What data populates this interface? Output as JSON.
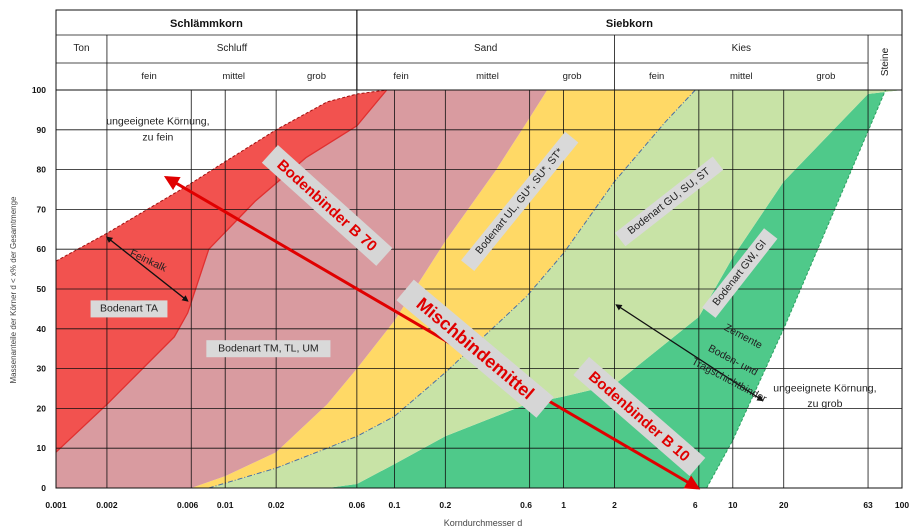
{
  "chart_data": {
    "type": "area",
    "header": {
      "groups": [
        {
          "label": "Schlämmkorn",
          "x0": 0.001,
          "x1": 0.06
        },
        {
          "label": "Siebkorn",
          "x0": 0.06,
          "x1": 100
        }
      ],
      "subgroups": [
        {
          "label": "Ton",
          "x0": 0.001,
          "x1": 0.002
        },
        {
          "label": "Schluff",
          "x0": 0.002,
          "x1": 0.06
        },
        {
          "label": "Sand",
          "x0": 0.06,
          "x1": 2
        },
        {
          "label": "Kies",
          "x0": 2,
          "x1": 63
        },
        {
          "label": "Steine",
          "x0": 63,
          "x1": 100
        }
      ],
      "fractions": [
        {
          "label": "fein",
          "x0": 0.002,
          "x1": 0.0063
        },
        {
          "label": "mittel",
          "x0": 0.0063,
          "x1": 0.02
        },
        {
          "label": "grob",
          "x0": 0.02,
          "x1": 0.06
        },
        {
          "label": "fein",
          "x0": 0.06,
          "x1": 0.2
        },
        {
          "label": "mittel",
          "x0": 0.2,
          "x1": 0.63
        },
        {
          "label": "grob",
          "x0": 0.63,
          "x1": 2
        },
        {
          "label": "fein",
          "x0": 2,
          "x1": 6.3
        },
        {
          "label": "mittel",
          "x0": 6.3,
          "x1": 20
        },
        {
          "label": "grob",
          "x0": 20,
          "x1": 63
        }
      ]
    },
    "x_scale": "log",
    "xlim": [
      0.001,
      100
    ],
    "ylim": [
      0,
      100
    ],
    "x_ticks": [
      {
        "value": 0.001,
        "label": "0.001"
      },
      {
        "value": 0.002,
        "label": "0.002"
      },
      {
        "value": 0.006,
        "label": "0.006"
      },
      {
        "value": 0.01,
        "label": "0.01"
      },
      {
        "value": 0.02,
        "label": "0.02"
      },
      {
        "value": 0.06,
        "label": "0.06"
      },
      {
        "value": 0.1,
        "label": "0.1"
      },
      {
        "value": 0.2,
        "label": "0.2"
      },
      {
        "value": 0.6,
        "label": "0.6"
      },
      {
        "value": 1,
        "label": "1"
      },
      {
        "value": 2,
        "label": "2"
      },
      {
        "value": 6,
        "label": "6"
      },
      {
        "value": 10,
        "label": "10"
      },
      {
        "value": 20,
        "label": "20"
      },
      {
        "value": 63,
        "label": "63"
      },
      {
        "value": 100,
        "label": "100"
      }
    ],
    "y_ticks": [
      0,
      10,
      20,
      30,
      40,
      50,
      60,
      70,
      80,
      90,
      100
    ],
    "xlabel": "Korndurchmesser d",
    "ylabel": "Massenanteile der Körner d < x% der Gesamtmenge",
    "vertical_lines": [
      0.002,
      0.0063,
      0.01,
      0.02,
      0.06,
      0.1,
      0.2,
      0.63,
      1,
      2,
      6.3,
      10,
      20,
      63,
      100
    ],
    "horizontal_lines": [
      10,
      20,
      30,
      40,
      50,
      60,
      70,
      80,
      90,
      100
    ],
    "colors": {
      "red": "#f2524f",
      "rose": "#d99ba0",
      "yellow": "#ffd966",
      "lightgreen": "#c8e3a6",
      "green": "#4fc98a",
      "binder": "#e00000"
    },
    "curves": {
      "c1": [
        [
          0.001,
          9
        ],
        [
          0.002,
          21
        ],
        [
          0.005,
          38
        ],
        [
          0.006,
          44
        ],
        [
          0.008,
          60
        ],
        [
          0.015,
          72
        ],
        [
          0.03,
          83
        ],
        [
          0.06,
          91
        ],
        [
          0.09,
          100
        ]
      ],
      "c2": [
        [
          0.001,
          57
        ],
        [
          0.002,
          64
        ],
        [
          0.006,
          76
        ],
        [
          0.01,
          82
        ],
        [
          0.02,
          90
        ],
        [
          0.04,
          97
        ],
        [
          0.06,
          99
        ],
        [
          0.09,
          100
        ]
      ],
      "c3": [
        [
          0.0063,
          0
        ],
        [
          0.01,
          3
        ],
        [
          0.02,
          9
        ],
        [
          0.04,
          21
        ],
        [
          0.06,
          30
        ],
        [
          0.1,
          42
        ],
        [
          0.2,
          62
        ],
        [
          0.4,
          80
        ],
        [
          0.63,
          93
        ],
        [
          0.8,
          100
        ]
      ],
      "c4": [
        [
          0.008,
          0
        ],
        [
          0.02,
          5
        ],
        [
          0.04,
          10
        ],
        [
          0.06,
          13
        ],
        [
          0.1,
          18
        ],
        [
          0.2,
          29
        ],
        [
          0.6,
          48
        ],
        [
          1,
          59
        ],
        [
          2,
          77
        ],
        [
          4,
          92
        ],
        [
          6,
          100
        ]
      ],
      "c5": [
        [
          0.02,
          0
        ],
        [
          0.04,
          4
        ],
        [
          0.06,
          7
        ],
        [
          0.2,
          18
        ],
        [
          0.6,
          28
        ],
        [
          1,
          37
        ],
        [
          2,
          50
        ],
        [
          6.3,
          62
        ],
        [
          10,
          70
        ],
        [
          20,
          82
        ],
        [
          45,
          100
        ]
      ],
      "c6": [
        [
          0.04,
          0
        ],
        [
          0.06,
          1
        ],
        [
          0.1,
          6
        ],
        [
          0.2,
          13
        ],
        [
          0.6,
          21
        ],
        [
          1,
          23
        ],
        [
          2,
          26
        ],
        [
          6.3,
          43
        ],
        [
          10,
          58
        ],
        [
          20,
          77
        ],
        [
          63,
          99
        ],
        [
          100,
          100
        ]
      ],
      "c7": [
        [
          7,
          0
        ],
        [
          10,
          12
        ],
        [
          20,
          40
        ],
        [
          40,
          70
        ],
        [
          80,
          100
        ]
      ]
    },
    "annotations": [
      {
        "text": "ungeeignete Körnung,",
        "x": 0.004,
        "y": 92
      },
      {
        "text": "zu fein",
        "x": 0.004,
        "y": 88
      },
      {
        "text": "Feinkalk",
        "x": 0.0035,
        "y": 57,
        "rotate": 25
      },
      {
        "text": "Bodenart TA",
        "x": 0.0027,
        "y": 45,
        "box": true
      },
      {
        "text": "Bodenart TM, TL, UM",
        "x": 0.018,
        "y": 35,
        "box": true
      },
      {
        "text": "Bodenart UL, GU*, SU*, ST*",
        "x": 0.55,
        "y": 72,
        "rotate": -51,
        "box": true
      },
      {
        "text": "Bodenart GU, SU, ST",
        "x": 4.2,
        "y": 72,
        "rotate": -38,
        "box": true
      },
      {
        "text": "Bodenart GW, GI",
        "x": 11,
        "y": 54,
        "rotate": -52,
        "box": true
      },
      {
        "text": "Zemente",
        "x": 11.5,
        "y": 38,
        "rotate": 28
      },
      {
        "text": "Boden- und",
        "x": 10,
        "y": 32,
        "rotate": 28
      },
      {
        "text": "Tragschichtbinder",
        "x": 9.5,
        "y": 27,
        "rotate": 28
      },
      {
        "text": "ungeeignete Körnung,",
        "x": 35,
        "y": 25
      },
      {
        "text": "zu grob",
        "x": 35,
        "y": 21
      }
    ],
    "binders": [
      {
        "text": "Bodenbinder B 70",
        "x": 0.04,
        "y": 71,
        "rotate": 42,
        "size": 15
      },
      {
        "text": "Mischbindemittel",
        "x": 0.3,
        "y": 35,
        "rotate": 40,
        "size": 18
      },
      {
        "text": "Bodenbinder B 10",
        "x": 2.8,
        "y": 18,
        "rotate": 41,
        "size": 15
      }
    ],
    "arrows": [
      {
        "from": [
          0.0045,
          78
        ],
        "to": [
          6.2,
          0
        ],
        "color": "binder",
        "width": 3
      },
      {
        "from": [
          0.002,
          63
        ],
        "to": [
          0.006,
          47
        ],
        "color": "#111",
        "width": 1.3
      },
      {
        "from": [
          2.05,
          46
        ],
        "to": [
          15,
          22
        ],
        "color": "#111",
        "width": 1.3
      }
    ]
  }
}
